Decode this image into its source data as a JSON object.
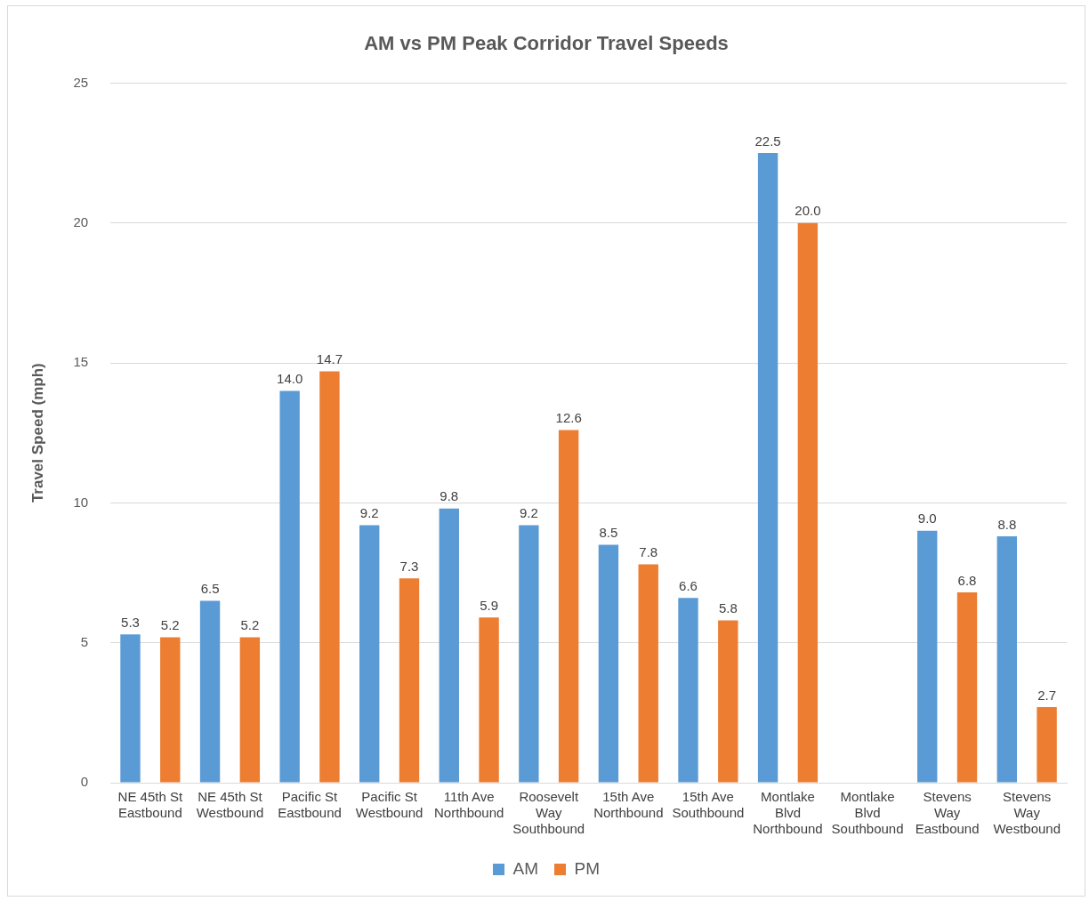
{
  "chart_data": {
    "type": "bar",
    "title": "AM vs PM Peak Corridor Travel Speeds",
    "ylabel": "Travel Speed (mph)",
    "categories": [
      "NE 45th St Eastbound",
      "NE 45th St Westbound",
      "Pacific St Eastbound",
      "Pacific St Westbound",
      "11th Ave Northbound",
      "Roosevelt Way Southbound",
      "15th Ave Northbound",
      "15th Ave Southbound",
      "Montlake Blvd Northbound",
      "Montlake Blvd Southbound",
      "Stevens Way Eastbound",
      "Stevens Way Westbound"
    ],
    "series": [
      {
        "name": "AM",
        "color": "#5b9bd5",
        "values": [
          5.3,
          6.5,
          14.0,
          9.2,
          9.8,
          9.2,
          8.5,
          6.6,
          22.5,
          null,
          9.0,
          8.8
        ],
        "value_labels": [
          "5.3",
          "6.5",
          "14.0",
          "9.2",
          "9.8",
          "9.2",
          "8.5",
          "6.6",
          "22.5",
          null,
          "9.0",
          "8.8"
        ]
      },
      {
        "name": "PM",
        "color": "#ed7d31",
        "values": [
          5.2,
          5.2,
          14.7,
          7.3,
          5.9,
          12.6,
          7.8,
          5.8,
          20.0,
          null,
          6.8,
          2.7
        ],
        "value_labels": [
          "5.2",
          "5.2",
          "14.7",
          "7.3",
          "5.9",
          "12.6",
          "7.8",
          "5.8",
          "20.0",
          null,
          "6.8",
          "2.7"
        ]
      }
    ],
    "ylim": [
      0,
      25
    ],
    "yticks": [
      0,
      5,
      10,
      15,
      20,
      25
    ],
    "grid": "y",
    "legend": "bottom"
  }
}
